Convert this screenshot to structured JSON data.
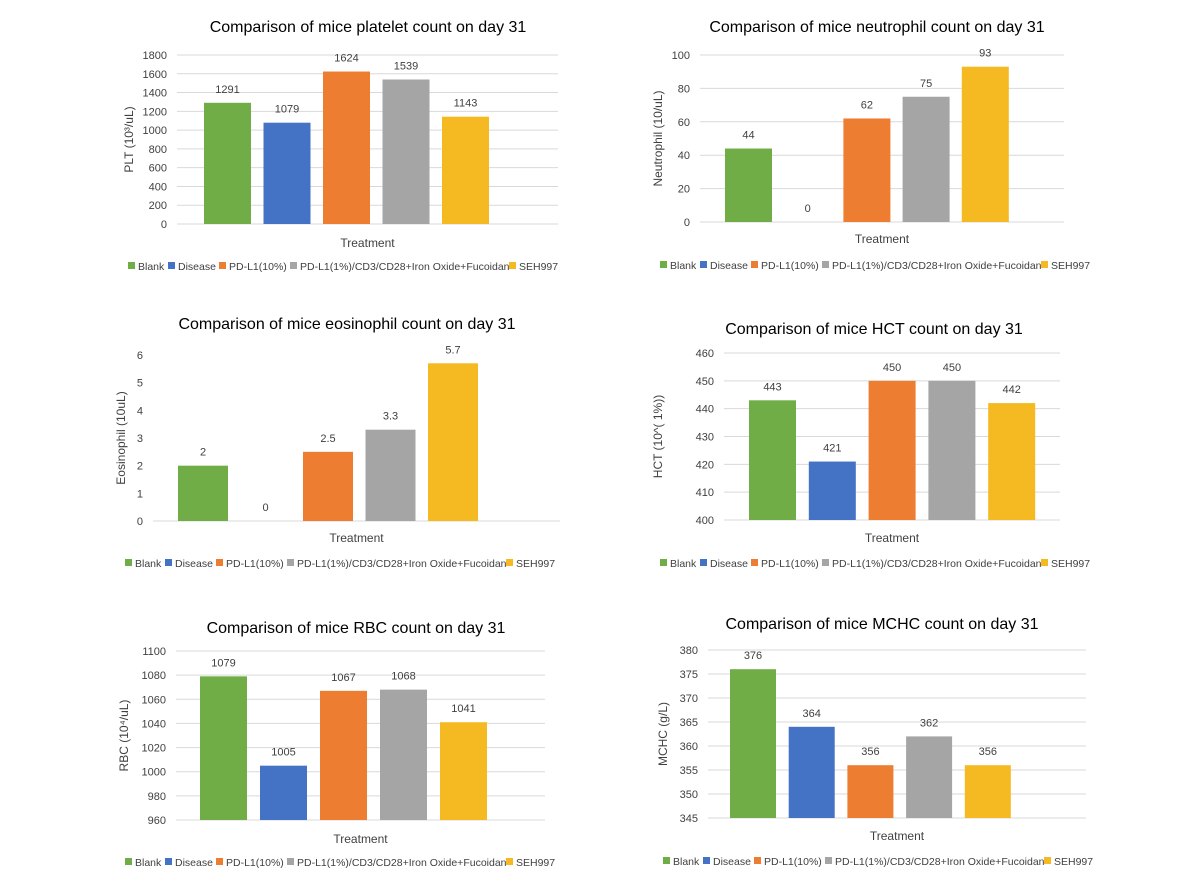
{
  "legend": [
    "Blank",
    "Disease",
    "PD-L1(10%)",
    "PD-L1(1%)/CD3/CD28+Iron Oxide+Fucoidan",
    "SEH997"
  ],
  "colors": [
    "#70ad47",
    "#4472c4",
    "#ed7d31",
    "#a5a5a5",
    "#f5b921"
  ],
  "chart_data": [
    {
      "type": "bar",
      "title": "Comparison of mice platelet count on day 31",
      "xlabel": "Treatment",
      "ylabel": "PLT (10³/uL)",
      "categories": [
        "Blank",
        "Disease",
        "PD-L1(10%)",
        "PD-L1(1%)/CD3/CD28+Iron Oxide+Fucoidan",
        "SEH997"
      ],
      "values": [
        1291,
        1079,
        1624,
        1539,
        1143
      ],
      "ylim": [
        0,
        1800
      ],
      "yticks": [
        0,
        200,
        400,
        600,
        800,
        1000,
        1200,
        1400,
        1600,
        1800
      ],
      "data_labels": [
        "1291",
        "1079",
        "1624",
        "1539",
        "1143"
      ],
      "grid": true,
      "legend": "bottom"
    },
    {
      "type": "bar",
      "title": "Comparison of mice neutrophil count on day 31",
      "xlabel": "Treatment",
      "ylabel": "Neutrophil  (10/uL)",
      "categories": [
        "Blank",
        "Disease",
        "PD-L1(10%)",
        "PD-L1(1%)/CD3/CD28+Iron Oxide+Fucoidan",
        "SEH997"
      ],
      "values": [
        44,
        0,
        62,
        75,
        93
      ],
      "ylim": [
        0,
        100
      ],
      "yticks": [
        0,
        20,
        40,
        60,
        80,
        100
      ],
      "data_labels": [
        "44",
        "0",
        "62",
        "75",
        "93"
      ],
      "grid": true,
      "legend": "bottom"
    },
    {
      "type": "bar",
      "title": "Comparison of mice eosinophil count on day 31",
      "xlabel": "Treatment",
      "ylabel": "Eosinophil (10uL)",
      "categories": [
        "Blank",
        "Disease",
        "PD-L1(10%)",
        "PD-L1(1%)/CD3/CD28+Iron Oxide+Fucoidan",
        "SEH997"
      ],
      "values": [
        2,
        0,
        2.5,
        3.3,
        5.7
      ],
      "ylim": [
        0,
        6
      ],
      "yticks": [
        0,
        1,
        2,
        3,
        4,
        5,
        6
      ],
      "data_labels": [
        "2",
        "0",
        "2.5",
        "3.3",
        "5.7"
      ],
      "grid": false,
      "legend": "bottom"
    },
    {
      "type": "bar",
      "title": "Comparison of mice HCT count on day 31",
      "xlabel": "Treatment",
      "ylabel": "HCT (10^( 1%))",
      "categories": [
        "Blank",
        "Disease",
        "PD-L1(10%)",
        "PD-L1(1%)/CD3/CD28+Iron Oxide+Fucoidan",
        "SEH997"
      ],
      "values": [
        443,
        421,
        450,
        450,
        442
      ],
      "ylim": [
        400,
        460
      ],
      "yticks": [
        400,
        410,
        420,
        430,
        440,
        450,
        460
      ],
      "data_labels": [
        "443",
        "421",
        "450",
        "450",
        "442"
      ],
      "grid": true,
      "legend": "bottom"
    },
    {
      "type": "bar",
      "title": "Comparison of mice RBC count on day 31",
      "xlabel": "Treatment",
      "ylabel": "RBC (10⁴/uL)",
      "categories": [
        "Blank",
        "Disease",
        "PD-L1(10%)",
        "PD-L1(1%)/CD3/CD28+Iron Oxide+Fucoidan",
        "SEH997"
      ],
      "values": [
        1079,
        1005,
        1067,
        1068,
        1041
      ],
      "ylim": [
        960,
        1100
      ],
      "yticks": [
        960,
        980,
        1000,
        1020,
        1040,
        1060,
        1080,
        1100
      ],
      "data_labels": [
        "1079",
        "1005",
        "1067",
        "1068",
        "1041"
      ],
      "grid": true,
      "legend": "bottom"
    },
    {
      "type": "bar",
      "title": "Comparison of mice MCHC count on day 31",
      "xlabel": "Treatment",
      "ylabel": "MCHC (g/L)",
      "categories": [
        "Blank",
        "Disease",
        "PD-L1(10%)",
        "PD-L1(1%)/CD3/CD28+Iron Oxide+Fucoidan",
        "SEH997"
      ],
      "values": [
        376,
        364,
        356,
        362,
        356
      ],
      "ylim": [
        345,
        380
      ],
      "yticks": [
        345,
        350,
        355,
        360,
        365,
        370,
        375,
        380
      ],
      "data_labels": [
        "376",
        "364",
        "356",
        "362",
        "356"
      ],
      "grid": true,
      "legend": "bottom"
    }
  ]
}
